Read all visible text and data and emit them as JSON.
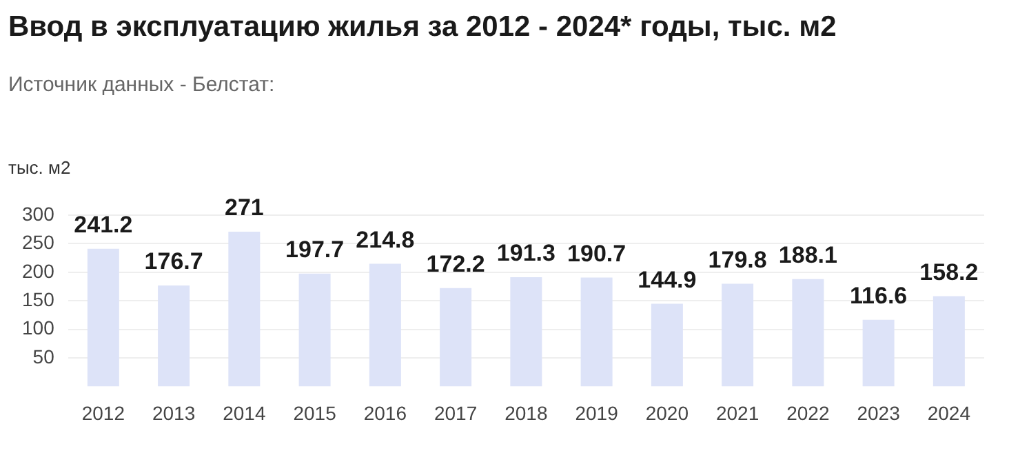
{
  "chart_data": {
    "type": "bar",
    "title": "Ввод в эксплуатацию жилья за 2012 - 2024* годы, тыс. м2",
    "subtitle": "Источник данных - Белстат:",
    "ylabel": "тыс. м2",
    "categories": [
      "2012",
      "2013",
      "2014",
      "2015",
      "2016",
      "2017",
      "2018",
      "2019",
      "2020",
      "2021",
      "2022",
      "2023",
      "2024"
    ],
    "values": [
      241.2,
      176.7,
      271,
      197.7,
      214.8,
      172.2,
      191.3,
      190.7,
      144.9,
      179.8,
      188.1,
      116.6,
      158.2
    ],
    "color": "#dde3f8",
    "ylim": [
      0,
      300
    ],
    "yticks": [
      50,
      100,
      150,
      200,
      250,
      300
    ],
    "grid": "y",
    "data_labels": true,
    "legend": false
  }
}
